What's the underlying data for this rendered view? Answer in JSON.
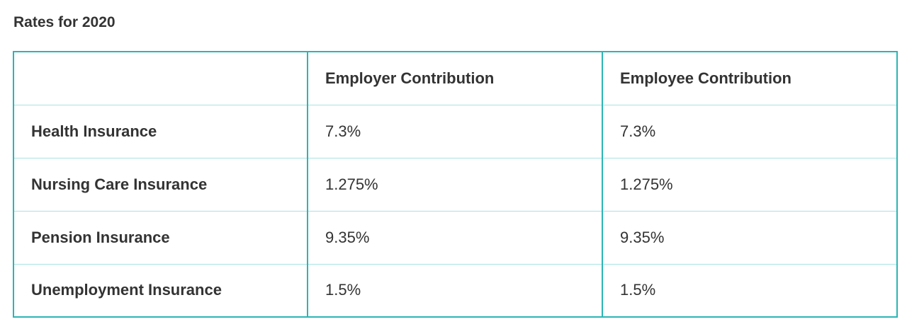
{
  "title": "Rates for 2020",
  "table": {
    "columns": [
      "",
      "Employer Contribution",
      "Employee Contribution"
    ],
    "rows": [
      {
        "label": "Health Insurance",
        "employer": "7.3%",
        "employee": "7.3%"
      },
      {
        "label": "Nursing Care Insurance",
        "employer": "1.275%",
        "employee": "1.275%"
      },
      {
        "label": "Pension Insurance",
        "employer": "9.35%",
        "employee": "9.35%"
      },
      {
        "label": "Unemployment Insurance",
        "employer": "1.5%",
        "employee": "1.5%"
      }
    ]
  },
  "colors": {
    "border_accent": "#2bb5b5",
    "row_divider": "#a9e3e3",
    "text": "#333333"
  }
}
